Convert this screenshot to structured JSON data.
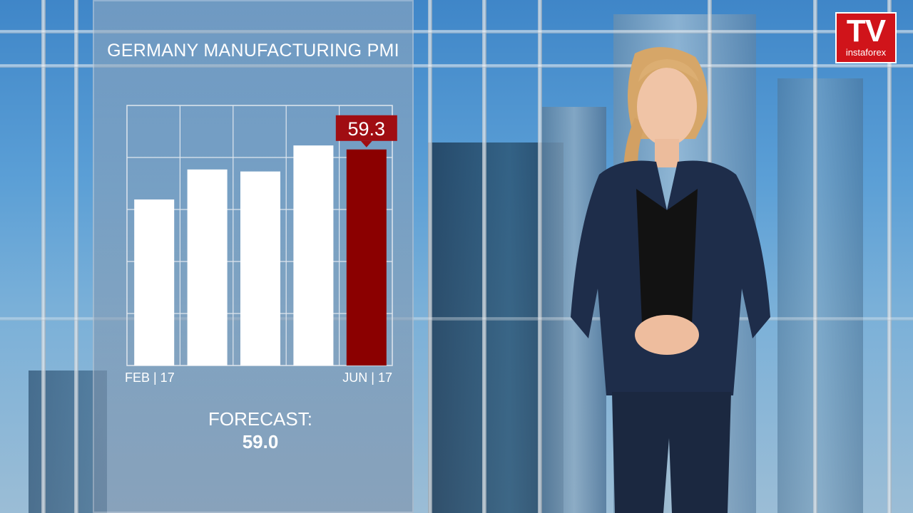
{
  "colors": {
    "bar": "#ffffff",
    "highlight_bar": "#8b0000",
    "value_label_bg": "#a00d12",
    "grid": "#dfe6ee"
  },
  "chart_data": {
    "type": "bar",
    "title": "GERMANY MANUFACTURING PMI",
    "categories": [
      "FEB | 17",
      "",
      "",
      "",
      "JUN | 17"
    ],
    "values": [
      56.8,
      58.3,
      58.2,
      59.5,
      59.3
    ],
    "highlight_index": 4,
    "highlight_label": "59.3",
    "ylim": [
      48.5,
      61.5
    ],
    "grid": true,
    "xlabel": "",
    "ylabel": ""
  },
  "forecast": {
    "label": "FORECAST:",
    "value": "59.0"
  },
  "logo": {
    "main": "TV",
    "sub": "instaforex"
  }
}
